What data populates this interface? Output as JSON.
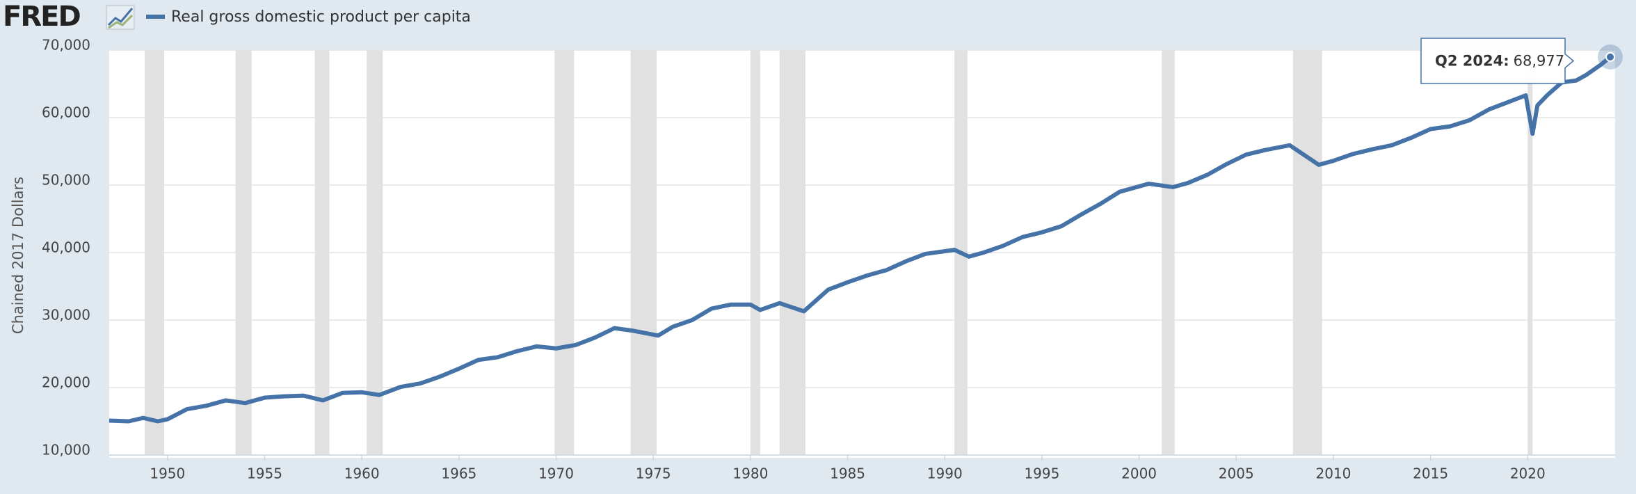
{
  "logo": "FRED",
  "chart_data": {
    "type": "line",
    "y_label": "Chained 2017 Dollars",
    "x": [
      1947,
      1948,
      1948.75,
      1949.5,
      1950,
      1951,
      1952,
      1953,
      1954,
      1955,
      1956,
      1957,
      1958,
      1959,
      1960,
      1960.9,
      1962,
      1963,
      1964,
      1965,
      1966,
      1967,
      1968,
      1969,
      1970,
      1971,
      1972,
      1973,
      1974,
      1975.25,
      1976,
      1977,
      1978,
      1979,
      1980,
      1980.5,
      1981.5,
      1982.75,
      1984,
      1985,
      1986,
      1987,
      1988,
      1989,
      1990.5,
      1991.25,
      1992,
      1993,
      1994,
      1995,
      1996,
      1997,
      1998,
      1999,
      2000.5,
      2001.75,
      2002.5,
      2003.5,
      2004.5,
      2005.5,
      2006.5,
      2007.75,
      2009.25,
      2010,
      2011,
      2012,
      2013,
      2014,
      2015,
      2016,
      2017,
      2018,
      2019,
      2019.9,
      2020.25,
      2020.5,
      2021,
      2021.75,
      2022.5,
      2023,
      2023.75,
      2024.25
    ],
    "series": [
      {
        "name": "Real gross domestic product per capita",
        "color": "#4572a7",
        "values": [
          15100,
          15000,
          15500,
          15000,
          15300,
          16800,
          17300,
          18100,
          17700,
          18500,
          18700,
          18800,
          18100,
          19200,
          19300,
          18900,
          20100,
          20600,
          21600,
          22800,
          24100,
          24500,
          25400,
          26100,
          25800,
          26300,
          27400,
          28800,
          28400,
          27700,
          29000,
          30000,
          31700,
          32300,
          32300,
          31500,
          32500,
          31300,
          34500,
          35600,
          36600,
          37400,
          38700,
          39800,
          40400,
          39400,
          40000,
          41000,
          42300,
          43000,
          43900,
          45600,
          47200,
          49000,
          50200,
          49700,
          50300,
          51500,
          53100,
          54500,
          55200,
          55900,
          53000,
          53600,
          54600,
          55300,
          55900,
          57000,
          58300,
          58700,
          59600,
          61200,
          62300,
          63300,
          57600,
          61800,
          63300,
          65200,
          65500,
          66300,
          67800,
          68977
        ]
      }
    ],
    "recessions": [
      [
        1948.83,
        1949.83
      ],
      [
        1953.5,
        1954.33
      ],
      [
        1957.58,
        1958.33
      ],
      [
        1960.25,
        1961.08
      ],
      [
        1969.92,
        1970.92
      ],
      [
        1973.83,
        1975.17
      ],
      [
        1980,
        1980.5
      ],
      [
        1981.5,
        1982.83
      ],
      [
        1990.5,
        1991.17
      ],
      [
        2001.17,
        2001.83
      ],
      [
        2007.92,
        2009.42
      ],
      [
        2020,
        2020.25
      ]
    ],
    "xlim": [
      1947,
      2024.5
    ],
    "xticks": [
      1950,
      1955,
      1960,
      1965,
      1970,
      1975,
      1980,
      1985,
      1990,
      1995,
      2000,
      2005,
      2010,
      2015,
      2020
    ],
    "ylim": [
      10000,
      70000
    ],
    "yticks": [
      {
        "value": 10000,
        "label": "10,000"
      },
      {
        "value": 20000,
        "label": "20,000"
      },
      {
        "value": 30000,
        "label": "30,000"
      },
      {
        "value": 40000,
        "label": "40,000"
      },
      {
        "value": 50000,
        "label": "50,000"
      },
      {
        "value": 60000,
        "label": "60,000"
      },
      {
        "value": 70000,
        "label": "70,000"
      }
    ],
    "grid": true,
    "tooltip": {
      "label": "Q2 2024:",
      "value": 68977,
      "value_label": "68,977"
    }
  }
}
